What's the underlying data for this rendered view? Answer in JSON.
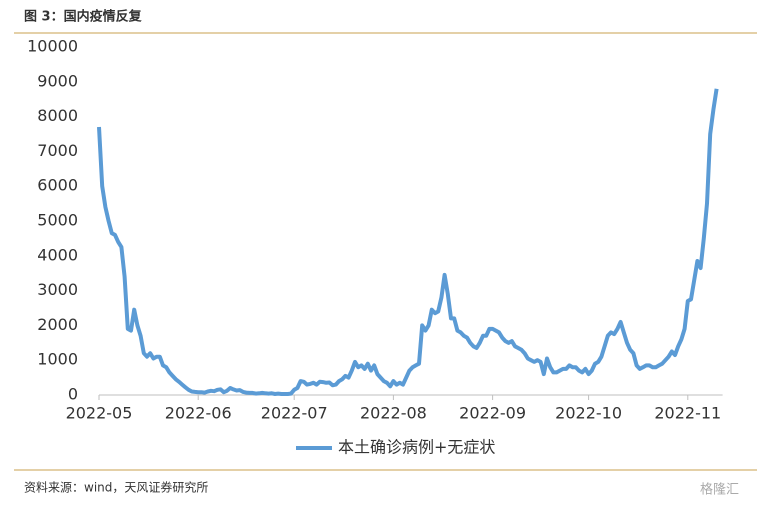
{
  "header": "图 3：国内疫情反复",
  "source": "资料来源：wind，天风证券研究所",
  "watermark": "格隆汇",
  "chart_data": {
    "type": "line",
    "categories": [
      "2022-05",
      null,
      null,
      null,
      null,
      null,
      null,
      null,
      null,
      null,
      null,
      null,
      null,
      null,
      null,
      null,
      null,
      null,
      null,
      null,
      null,
      null,
      null,
      null,
      null,
      null,
      null,
      null,
      null,
      null,
      null,
      "2022-06",
      null,
      null,
      null,
      null,
      null,
      null,
      null,
      null,
      null,
      null,
      null,
      null,
      null,
      null,
      null,
      null,
      null,
      null,
      null,
      null,
      null,
      null,
      null,
      null,
      null,
      null,
      null,
      null,
      null,
      "2022-07",
      null,
      null,
      null,
      null,
      null,
      null,
      null,
      null,
      null,
      null,
      null,
      null,
      null,
      null,
      null,
      null,
      null,
      null,
      null,
      null,
      null,
      null,
      null,
      null,
      null,
      null,
      null,
      null,
      null,
      null,
      "2022-08",
      null,
      null,
      null,
      null,
      null,
      null,
      null,
      null,
      null,
      null,
      null,
      null,
      null,
      null,
      null,
      null,
      null,
      null,
      null,
      null,
      null,
      null,
      null,
      null,
      null,
      null,
      null,
      null,
      null,
      null,
      "2022-09",
      null,
      null,
      null,
      null,
      null,
      null,
      null,
      null,
      null,
      null,
      null,
      null,
      null,
      null,
      null,
      null,
      null,
      null,
      null,
      null,
      null,
      null,
      null,
      null,
      null,
      null,
      null,
      null,
      null,
      "2022-10",
      null,
      null,
      null,
      null,
      null,
      null,
      null,
      null,
      null,
      null,
      null,
      null,
      null,
      null,
      null,
      null,
      null,
      null,
      null,
      null,
      null,
      null,
      null,
      null,
      null,
      null,
      null,
      null,
      null,
      null,
      "2022-11",
      null,
      null,
      null,
      null,
      null,
      null,
      null,
      null,
      null
    ],
    "series": [
      {
        "name": "本土确诊病例+无症状",
        "color": "#5b9bd5",
        "values": [
          7700,
          6000,
          5400,
          5000,
          4650,
          4600,
          4400,
          4250,
          3400,
          1900,
          1850,
          2450,
          2000,
          1700,
          1200,
          1100,
          1200,
          1050,
          1100,
          1100,
          850,
          800,
          650,
          550,
          450,
          380,
          300,
          220,
          150,
          100,
          90,
          80,
          80,
          70,
          100,
          120,
          110,
          150,
          160,
          80,
          120,
          200,
          160,
          130,
          140,
          90,
          70,
          60,
          60,
          40,
          50,
          60,
          50,
          40,
          50,
          30,
          40,
          30,
          30,
          30,
          40,
          150,
          200,
          400,
          380,
          300,
          320,
          350,
          300,
          380,
          370,
          350,
          360,
          280,
          300,
          400,
          450,
          550,
          500,
          700,
          950,
          800,
          850,
          750,
          900,
          700,
          850,
          600,
          500,
          400,
          350,
          250,
          400,
          300,
          350,
          300,
          500,
          700,
          800,
          850,
          900,
          2000,
          1850,
          2000,
          2450,
          2350,
          2400,
          2800,
          3450,
          2900,
          2200,
          2200,
          1850,
          1800,
          1700,
          1650,
          1500,
          1400,
          1350,
          1500,
          1700,
          1700,
          1900,
          1900,
          1850,
          1800,
          1650,
          1550,
          1500,
          1550,
          1400,
          1350,
          1300,
          1200,
          1050,
          1000,
          950,
          1000,
          950,
          600,
          1050,
          800,
          650,
          650,
          700,
          750,
          750,
          850,
          800,
          800,
          700,
          650,
          750,
          600,
          700,
          900,
          950,
          1100,
          1400,
          1700,
          1800,
          1750,
          1900,
          2100,
          1800,
          1500,
          1300,
          1200,
          850,
          750,
          800,
          850,
          850,
          800,
          800,
          850,
          900,
          1000,
          1100,
          1250,
          1150,
          1400,
          1600,
          1900,
          2700,
          2750,
          3300,
          3850,
          3650,
          4500,
          5500,
          7500,
          8200,
          8800
        ]
      }
    ],
    "ylim": [
      0,
      10000
    ],
    "yticks": [
      0,
      1000,
      2000,
      3000,
      4000,
      5000,
      6000,
      7000,
      8000,
      9000,
      10000
    ],
    "legend": "bottom"
  }
}
